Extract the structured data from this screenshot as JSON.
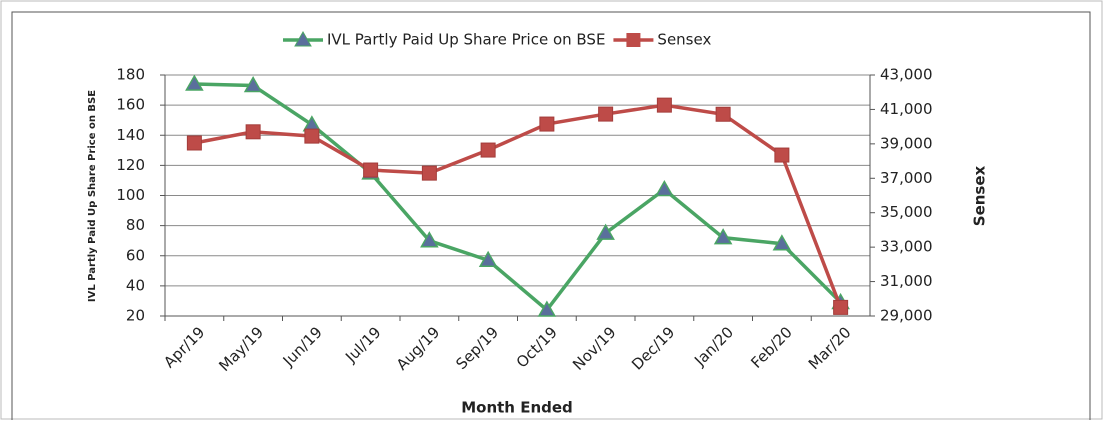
{
  "chart_data": {
    "type": "line",
    "x_label": "Month Ended",
    "y_label": "IVL Partly Paid Up Share Price on BSE",
    "y2_label": "Sensex",
    "categories": [
      "Apr/19",
      "May/19",
      "Jun/19",
      "Jul/19",
      "Aug/19",
      "Sep/19",
      "Oct/19",
      "Nov/19",
      "Dec/19",
      "Jan/20",
      "Feb/20",
      "Mar/20"
    ],
    "series": [
      {
        "name": "IVL Partly Paid Up Share Price on BSE",
        "color": "#4aa564",
        "marker": "triangle",
        "marker_color": "#5a6f9c",
        "axis": "y",
        "values": [
          174,
          173,
          147,
          115,
          70,
          57,
          24,
          75,
          104,
          72,
          68,
          29
        ]
      },
      {
        "name": "Sensex",
        "color": "#be4b48",
        "marker": "square",
        "marker_color": "#be4b48",
        "axis": "y2",
        "values": [
          39050,
          39700,
          39450,
          37480,
          37300,
          38640,
          40150,
          40730,
          41250,
          40720,
          38350,
          29500
        ]
      }
    ],
    "ylim": [
      20,
      180
    ],
    "yticks": [
      20,
      40,
      60,
      80,
      100,
      120,
      140,
      160,
      180
    ],
    "y2lim": [
      29000,
      43000
    ],
    "y2ticks": [
      {
        "value": 29000,
        "label": "29,000"
      },
      {
        "value": 31000,
        "label": "31,000"
      },
      {
        "value": 33000,
        "label": "33,000"
      },
      {
        "value": 35000,
        "label": "35,000"
      },
      {
        "value": 37000,
        "label": "37,000"
      },
      {
        "value": 39000,
        "label": "39,000"
      },
      {
        "value": 41000,
        "label": "41,000"
      },
      {
        "value": 43000,
        "label": "43,000"
      }
    ],
    "grid": true,
    "legend": "top"
  }
}
